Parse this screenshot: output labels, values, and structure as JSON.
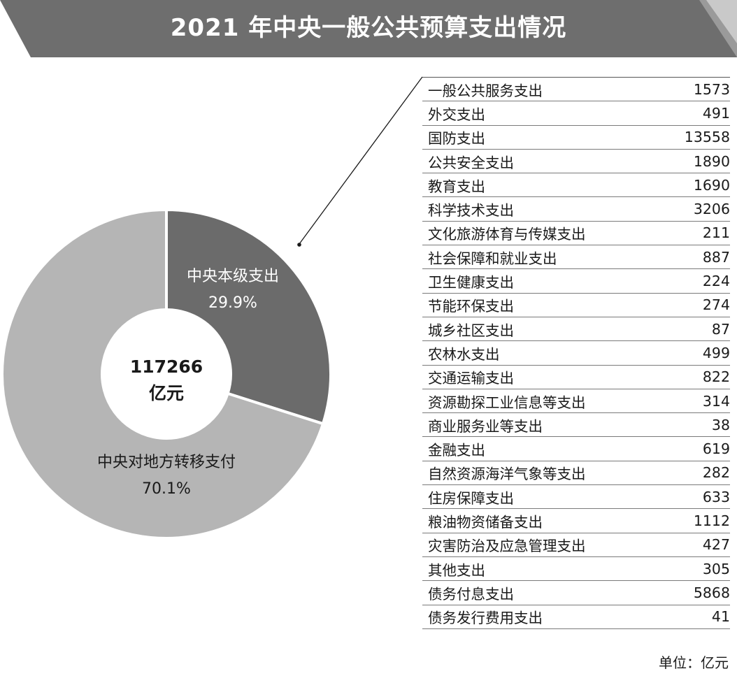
{
  "title": "2021 年中央一般公共预算支出情况",
  "chart_data": [
    {
      "type": "pie",
      "title": "",
      "center_value": "117266",
      "center_unit": "亿元",
      "slices": [
        {
          "label": "中央本级支出",
          "pct_text": "29.9%",
          "value": 29.9,
          "color": "#6b6b6b"
        },
        {
          "label": "中央对地方转移支付",
          "pct_text": "70.1%",
          "value": 70.1,
          "color": "#b5b5b5"
        }
      ]
    },
    {
      "type": "table",
      "unit": "单位：亿元",
      "rows": [
        {
          "label": "一般公共服务支出",
          "value": "1573"
        },
        {
          "label": "外交支出",
          "value": "491"
        },
        {
          "label": "国防支出",
          "value": "13558"
        },
        {
          "label": "公共安全支出",
          "value": "1890"
        },
        {
          "label": "教育支出",
          "value": "1690"
        },
        {
          "label": "科学技术支出",
          "value": "3206"
        },
        {
          "label": "文化旅游体育与传媒支出",
          "value": "211"
        },
        {
          "label": "社会保障和就业支出",
          "value": "887"
        },
        {
          "label": "卫生健康支出",
          "value": "224"
        },
        {
          "label": "节能环保支出",
          "value": "274"
        },
        {
          "label": "城乡社区支出",
          "value": "87"
        },
        {
          "label": "农林水支出",
          "value": "499"
        },
        {
          "label": "交通运输支出",
          "value": "822"
        },
        {
          "label": "资源勘探工业信息等支出",
          "value": "314"
        },
        {
          "label": "商业服务业等支出",
          "value": "38"
        },
        {
          "label": "金融支出",
          "value": "619"
        },
        {
          "label": "自然资源海洋气象等支出",
          "value": "282"
        },
        {
          "label": "住房保障支出",
          "value": "633"
        },
        {
          "label": "粮油物资储备支出",
          "value": "1112"
        },
        {
          "label": "灾害防治及应急管理支出",
          "value": "427"
        },
        {
          "label": "其他支出",
          "value": "305"
        },
        {
          "label": "债务付息支出",
          "value": "5868"
        },
        {
          "label": "债务发行费用支出",
          "value": "41"
        }
      ]
    }
  ]
}
